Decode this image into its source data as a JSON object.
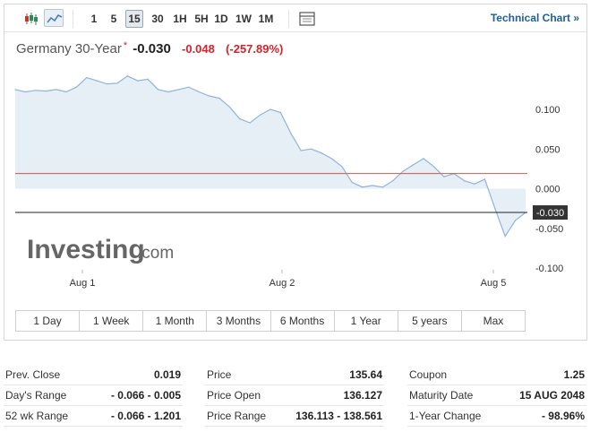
{
  "toolbar": {
    "periods": [
      "1",
      "5",
      "15",
      "30",
      "1H",
      "5H",
      "1D",
      "1W",
      "1M"
    ],
    "active_period": "15",
    "technical_link": "Technical Chart »"
  },
  "quote": {
    "name": "Germany 30-Year",
    "star": "*",
    "last": "-0.030",
    "change": "-0.048",
    "change_pct": "(-257.89%)"
  },
  "watermark": {
    "brand": "Investing",
    "suffix": ".com"
  },
  "chart_data": {
    "type": "area",
    "x_tick_labels": [
      "Aug 1",
      "Aug 2",
      "Aug 5"
    ],
    "y_tick_labels": [
      "0.100",
      "0.050",
      "0.000",
      "-0.050",
      "-0.100"
    ],
    "ylim": [
      -0.1,
      0.125
    ],
    "grid": false,
    "series": [
      {
        "values": [
          0.125,
          0.122,
          0.124,
          0.123,
          0.125,
          0.122,
          0.128,
          0.14,
          0.136,
          0.132,
          0.133,
          0.142,
          0.136,
          0.138,
          0.125,
          0.122,
          0.125,
          0.128,
          0.122,
          0.117,
          0.114,
          0.103,
          0.088,
          0.083,
          0.093,
          0.1,
          0.096,
          0.07,
          0.048,
          0.05,
          0.045,
          0.038,
          0.028,
          0.008,
          0.002,
          0.004,
          0.002,
          0.01,
          0.022,
          0.03,
          0.038,
          0.028,
          0.015,
          0.019,
          0.01,
          0.006,
          0.012,
          -0.025,
          -0.06,
          -0.04,
          -0.03
        ]
      }
    ],
    "reference_lines": [
      {
        "name": "prev_close",
        "value": 0.019,
        "color": "#d9534f"
      },
      {
        "name": "last",
        "value": -0.03,
        "label": "-0.030",
        "color": "#222222"
      }
    ],
    "colors": {
      "line": "#8fb4d9",
      "fill": "#e6eef6"
    }
  },
  "ranges": [
    "1 Day",
    "1 Week",
    "1 Month",
    "3 Months",
    "6 Months",
    "1 Year",
    "5 years",
    "Max"
  ],
  "stats": {
    "col1": [
      {
        "label": "Prev. Close",
        "value": "0.019"
      },
      {
        "label": "Day's Range",
        "value": "- 0.066 - 0.005"
      },
      {
        "label": "52 wk Range",
        "value": "- 0.066 - 1.201"
      }
    ],
    "col2": [
      {
        "label": "Price",
        "value": "135.64"
      },
      {
        "label": "Price Open",
        "value": "136.127"
      },
      {
        "label": "Price Range",
        "value": "136.113 - 138.561"
      }
    ],
    "col3": [
      {
        "label": "Coupon",
        "value": "1.25"
      },
      {
        "label": "Maturity Date",
        "value": "15 AUG 2048"
      },
      {
        "label": "1-Year Change",
        "value": "- 98.96%"
      }
    ]
  }
}
